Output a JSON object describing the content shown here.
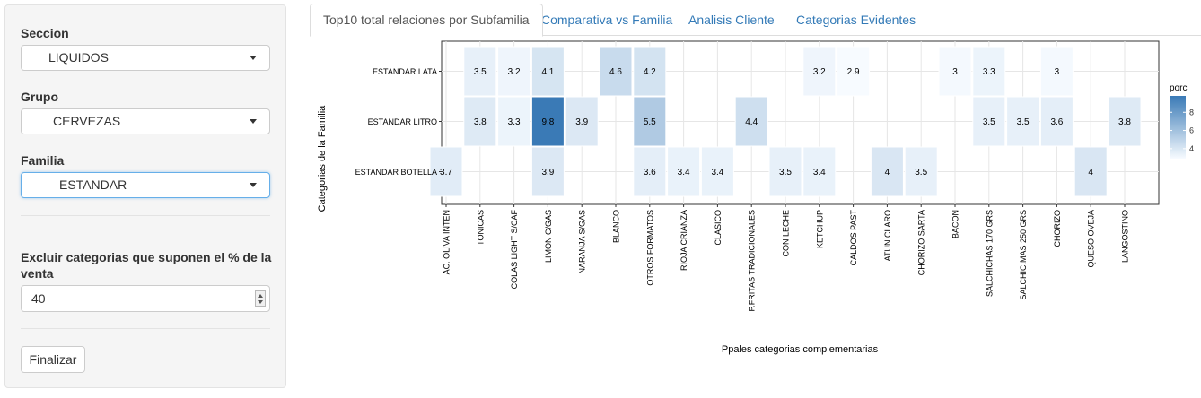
{
  "sidebar": {
    "seccion_label": "Seccion",
    "seccion_value": "LIQUIDOS",
    "grupo_label": "Grupo",
    "grupo_value": "CERVEZAS",
    "familia_label": "Familia",
    "familia_value": "ESTANDAR",
    "excluir_label_line1": "Excluir categorias que suponen el % de la",
    "excluir_label_line2": "venta",
    "excluir_value": "40",
    "finalizar_label": "Finalizar"
  },
  "tabs": [
    {
      "label": "Top10 total relaciones por Subfamilia",
      "active": true
    },
    {
      "label": "Comparativa vs Familia",
      "active": false
    },
    {
      "label": "Analisis Cliente",
      "active": false
    },
    {
      "label": "Categorias Evidentes",
      "active": false
    }
  ],
  "colors": {
    "low": "#f7fbff",
    "high": "#3a7ab6",
    "link": "#337ab7",
    "panel_bg": "#f5f5f5"
  },
  "chart_data": {
    "type": "heatmap",
    "xlabel": "Ppales categorias complementarias",
    "ylabel": "Categorias de la Familia",
    "legend_title": "porc",
    "legend_ticks": [
      4,
      6,
      8
    ],
    "color_range": [
      2.9,
      9.8
    ],
    "legend_position": "right",
    "x": [
      "AC. OLIVA INTEN",
      "TONICAS",
      "COLAS LIGHT S/CAF",
      "LIMON C/GAS",
      "NARANJA S/GAS",
      "BLANCO",
      "OTROS FORMATOS",
      "RIOJA CRIANZA",
      "CLASICO",
      "P.FRITAS TRADICIONALES",
      "CON LECHE",
      "KETCHUP",
      "CALDOS PAST",
      "ATUN CLARO",
      "CHORIZO SARTA",
      "BACON",
      "SALCHICHAS 170 GRS",
      "SALCHIC.MAS 250 GRS",
      "CHORIZO",
      "QUESO OVEJA",
      "LANGOSTINO"
    ],
    "y": [
      "ESTANDAR LATA",
      "ESTANDAR LITRO",
      "ESTANDAR BOTELLA"
    ],
    "cells": [
      {
        "x": "TONICAS",
        "y": "ESTANDAR LATA",
        "value": 3.5
      },
      {
        "x": "COLAS LIGHT S/CAF",
        "y": "ESTANDAR LATA",
        "value": 3.2
      },
      {
        "x": "LIMON C/GAS",
        "y": "ESTANDAR LATA",
        "value": 4.1
      },
      {
        "x": "BLANCO",
        "y": "ESTANDAR LATA",
        "value": 4.6
      },
      {
        "x": "OTROS FORMATOS",
        "y": "ESTANDAR LATA",
        "value": 4.2
      },
      {
        "x": "KETCHUP",
        "y": "ESTANDAR LATA",
        "value": 3.2
      },
      {
        "x": "CALDOS PAST",
        "y": "ESTANDAR LATA",
        "value": 2.9
      },
      {
        "x": "BACON",
        "y": "ESTANDAR LATA",
        "value": 3
      },
      {
        "x": "SALCHICHAS 170 GRS",
        "y": "ESTANDAR LATA",
        "value": 3.3
      },
      {
        "x": "CHORIZO",
        "y": "ESTANDAR LATA",
        "value": 3
      },
      {
        "x": "TONICAS",
        "y": "ESTANDAR LITRO",
        "value": 3.8
      },
      {
        "x": "COLAS LIGHT S/CAF",
        "y": "ESTANDAR LITRO",
        "value": 3.3
      },
      {
        "x": "LIMON C/GAS",
        "y": "ESTANDAR LITRO",
        "value": 9.8
      },
      {
        "x": "NARANJA S/GAS",
        "y": "ESTANDAR LITRO",
        "value": 3.9
      },
      {
        "x": "OTROS FORMATOS",
        "y": "ESTANDAR LITRO",
        "value": 5.5
      },
      {
        "x": "P.FRITAS TRADICIONALES",
        "y": "ESTANDAR LITRO",
        "value": 4.4
      },
      {
        "x": "SALCHICHAS 170 GRS",
        "y": "ESTANDAR LITRO",
        "value": 3.5
      },
      {
        "x": "SALCHIC.MAS 250 GRS",
        "y": "ESTANDAR LITRO",
        "value": 3.5
      },
      {
        "x": "CHORIZO",
        "y": "ESTANDAR LITRO",
        "value": 3.6
      },
      {
        "x": "LANGOSTINO",
        "y": "ESTANDAR LITRO",
        "value": 3.8
      },
      {
        "x": "AC. OLIVA INTEN",
        "y": "ESTANDAR BOTELLA",
        "value": 3.7
      },
      {
        "x": "LIMON C/GAS",
        "y": "ESTANDAR BOTELLA",
        "value": 3.9
      },
      {
        "x": "OTROS FORMATOS",
        "y": "ESTANDAR BOTELLA",
        "value": 3.6
      },
      {
        "x": "RIOJA CRIANZA",
        "y": "ESTANDAR BOTELLA",
        "value": 3.4
      },
      {
        "x": "CLASICO",
        "y": "ESTANDAR BOTELLA",
        "value": 3.4
      },
      {
        "x": "CON LECHE",
        "y": "ESTANDAR BOTELLA",
        "value": 3.5
      },
      {
        "x": "KETCHUP",
        "y": "ESTANDAR BOTELLA",
        "value": 3.4
      },
      {
        "x": "ATUN CLARO",
        "y": "ESTANDAR BOTELLA",
        "value": 4
      },
      {
        "x": "CHORIZO SARTA",
        "y": "ESTANDAR BOTELLA",
        "value": 3.5
      },
      {
        "x": "QUESO OVEJA",
        "y": "ESTANDAR BOTELLA",
        "value": 4
      }
    ]
  }
}
